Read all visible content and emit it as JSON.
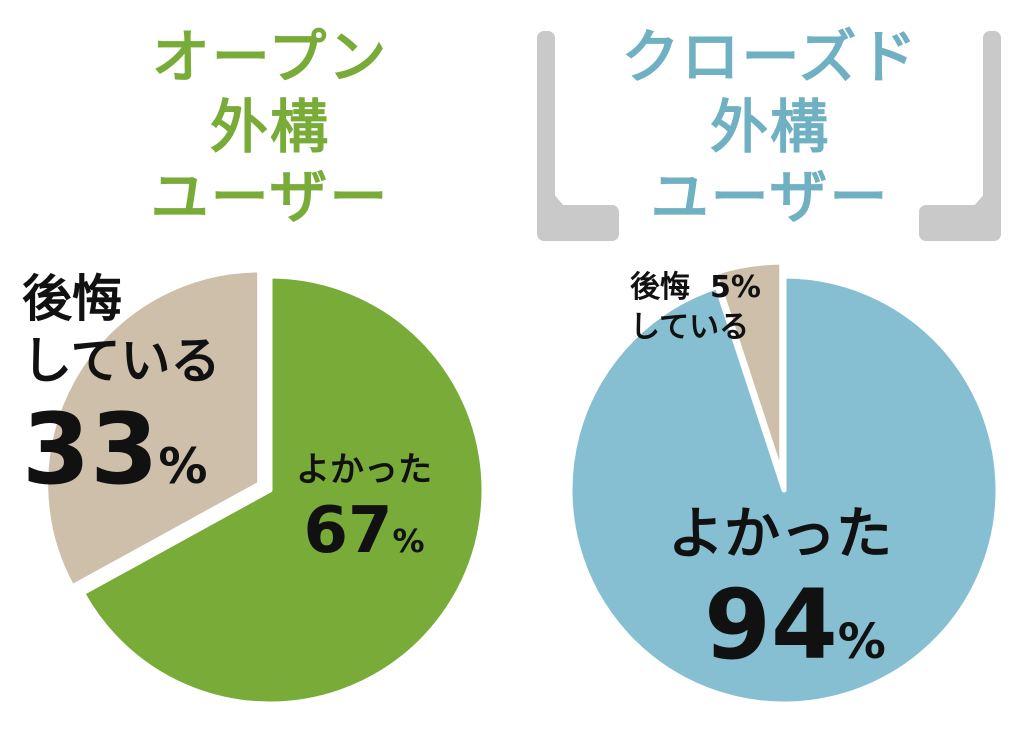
{
  "open": {
    "title_lines": [
      "オープン",
      "外構",
      "ユーザー"
    ],
    "color": "#79ab38"
  },
  "closed": {
    "title_lines": [
      "クローズド",
      "外構",
      "ユーザー"
    ],
    "color": "#6fb0c2"
  },
  "chart_data": [
    {
      "type": "pie",
      "title": "オープン外構ユーザー",
      "categories": [
        "よかった",
        "後悔している"
      ],
      "values": [
        67,
        33
      ],
      "colors": [
        "#79ab38",
        "#cdbfaa"
      ],
      "labels": [
        {
          "lines": [
            "よかった"
          ],
          "value": "67",
          "unit": "%"
        },
        {
          "lines": [
            "後悔",
            "している"
          ],
          "value": "33",
          "unit": "%"
        }
      ]
    },
    {
      "type": "pie",
      "title": "クローズド外構ユーザー",
      "categories": [
        "よかった",
        "後悔している"
      ],
      "values": [
        94,
        5
      ],
      "colors": [
        "#86bfd2",
        "#cdbfaa"
      ],
      "labels": [
        {
          "lines": [
            "よかった"
          ],
          "value": "94",
          "unit": "%"
        },
        {
          "lines": [
            "後悔",
            "している"
          ],
          "value": "5",
          "unit": "%"
        }
      ]
    }
  ]
}
